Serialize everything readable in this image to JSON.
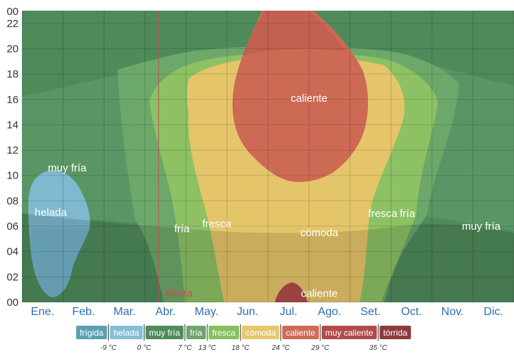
{
  "chart_data": {
    "type": "heatmap",
    "title": "",
    "xlabel": "",
    "ylabel": "",
    "ylim": [
      0,
      23
    ],
    "y_ticks": [
      "00",
      "02",
      "04",
      "06",
      "08",
      "10",
      "12",
      "14",
      "16",
      "18",
      "20",
      "22"
    ],
    "x_months": [
      "Ene.",
      "Feb.",
      "Mar.",
      "Abr.",
      "May.",
      "Jun.",
      "Jul.",
      "Ago.",
      "Set.",
      "Oct.",
      "Nov.",
      "Dic."
    ],
    "now_marker": {
      "label": "Ahora",
      "month_position": 3.33
    },
    "zone_labels": [
      {
        "text": "muy fría",
        "month": 1.1,
        "hour": 10.6
      },
      {
        "text": "helada",
        "month": 0.7,
        "hour": 7.1
      },
      {
        "text": "fría",
        "month": 3.9,
        "hour": 5.8
      },
      {
        "text": "fresca",
        "month": 4.75,
        "hour": 6.2
      },
      {
        "text": "caliente",
        "month": 7.0,
        "hour": 16.1
      },
      {
        "text": "cómoda",
        "month": 7.25,
        "hour": 5.5
      },
      {
        "text": "caliente",
        "month": 7.25,
        "hour": 0.7
      },
      {
        "text": "fresca",
        "month": 8.8,
        "hour": 7.0
      },
      {
        "text": "fría",
        "month": 9.4,
        "hour": 7.0
      },
      {
        "text": "muy fría",
        "month": 11.2,
        "hour": 6.0
      }
    ],
    "legend": [
      {
        "label": "frígida",
        "color": "#5aa0b3"
      },
      {
        "label": "helada",
        "color": "#84bfd3"
      },
      {
        "label": "muy fría",
        "color": "#4e8c5a"
      },
      {
        "label": "fría",
        "color": "#6fa56b"
      },
      {
        "label": "fresca",
        "color": "#87c05e"
      },
      {
        "label": "cómoda",
        "color": "#e6c76b"
      },
      {
        "label": "caliente",
        "color": "#cf6b55"
      },
      {
        "label": "muy caliente",
        "color": "#b14b4b"
      },
      {
        "label": "tórrida",
        "color": "#8e3b3b"
      }
    ],
    "legend_thresholds": [
      "-9 °C",
      "0 °C",
      "7 °C",
      "13 °C",
      "18 °C",
      "24 °C",
      "29 °C",
      "35 °C"
    ]
  }
}
